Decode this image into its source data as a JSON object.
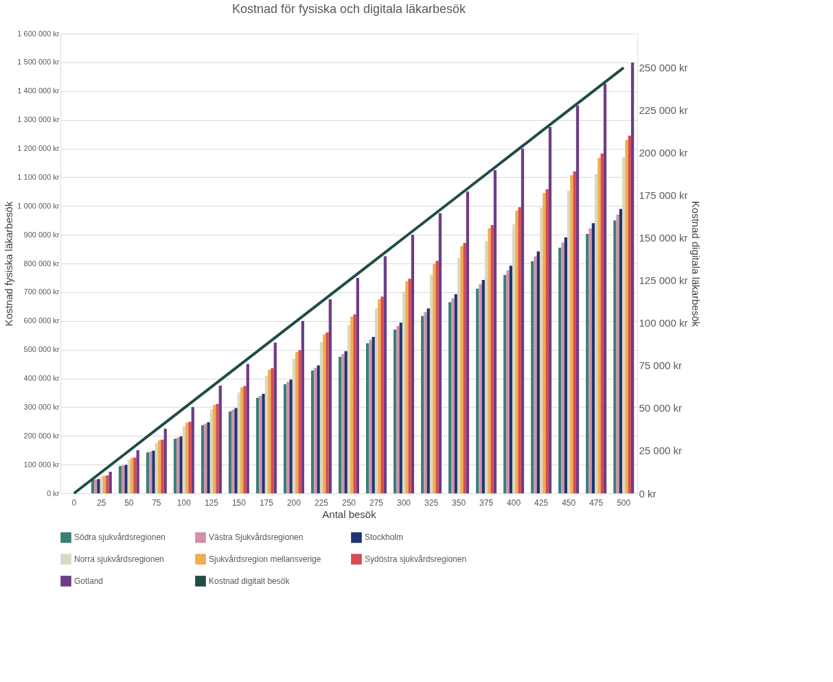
{
  "chart_data": {
    "type": "bar",
    "title": "Kostnad för fysiska och digitala läkarbesök",
    "xlabel": "Antal besök",
    "ylabel": "Kostnad fysiska läkarbesök",
    "y2label": "Kostnad digitala läkarbesök",
    "categories": [
      "0",
      "25",
      "50",
      "75",
      "100",
      "125",
      "150",
      "175",
      "200",
      "225",
      "250",
      "275",
      "300",
      "325",
      "350",
      "375",
      "400",
      "425",
      "450",
      "475",
      "500"
    ],
    "series": [
      {
        "name": "Södra sjukvårdsregionen",
        "color": "#3a8077",
        "values": [
          0,
          47500,
          95000,
          142500,
          190000,
          237500,
          285000,
          332500,
          380000,
          427500,
          475000,
          522500,
          570000,
          617500,
          665000,
          712500,
          760000,
          807500,
          855000,
          902500,
          950000
        ]
      },
      {
        "name": "Västra Sjukvårdsregionen",
        "color": "#d291a8",
        "values": [
          0,
          48500,
          97000,
          145500,
          194000,
          242500,
          291000,
          339500,
          388000,
          436500,
          485000,
          533500,
          582000,
          630500,
          679000,
          727500,
          776000,
          824500,
          873000,
          921500,
          970000
        ]
      },
      {
        "name": "Stockholm",
        "color": "#1f3473",
        "values": [
          0,
          49500,
          99000,
          148500,
          198000,
          247500,
          297000,
          346500,
          396000,
          445500,
          495000,
          544500,
          594000,
          643500,
          693000,
          742500,
          792000,
          841500,
          891000,
          940500,
          990000
        ]
      },
      {
        "name": "Norra sjukvårdsregionen",
        "color": "#ddd8c0",
        "values": [
          0,
          58500,
          117000,
          175500,
          234000,
          292500,
          351000,
          409500,
          468000,
          526500,
          585000,
          643500,
          702000,
          760500,
          819000,
          877500,
          936000,
          994500,
          1053000,
          1111500,
          1170000
        ]
      },
      {
        "name": "Sjukvårdsregion mellansverige",
        "color": "#efae4f",
        "values": [
          0,
          61500,
          123000,
          184500,
          246000,
          307500,
          369000,
          430500,
          492000,
          553500,
          615000,
          676500,
          738000,
          799500,
          861000,
          922500,
          984000,
          1045500,
          1107000,
          1168500,
          1230000
        ]
      },
      {
        "name": "Sydöstra sjukvårdsregionen",
        "color": "#d84a4e",
        "values": [
          0,
          62250,
          124500,
          186750,
          249000,
          311250,
          373500,
          435750,
          498000,
          560250,
          622500,
          684750,
          747000,
          809250,
          871500,
          933750,
          996000,
          1058250,
          1120500,
          1182750,
          1245000
        ]
      },
      {
        "name": "Gotland",
        "color": "#6e3d85",
        "values": [
          0,
          75000,
          150000,
          225000,
          300000,
          375000,
          450000,
          525000,
          600000,
          675000,
          750000,
          825000,
          900000,
          975000,
          1050000,
          1125000,
          1200000,
          1275000,
          1350000,
          1425000,
          1500000
        ]
      },
      {
        "name": "Kostnad digitalt besök",
        "color": "#1e4d44",
        "type": "line",
        "axis": "y2",
        "values": [
          0,
          12500,
          25000,
          37500,
          50000,
          62500,
          75000,
          87500,
          100000,
          112500,
          125000,
          137500,
          150000,
          162500,
          175000,
          187500,
          200000,
          212500,
          225000,
          237500,
          250000
        ]
      }
    ],
    "ylim": [
      0,
      1600000
    ],
    "yticks": [
      {
        "value": 0,
        "label": "0 kr"
      },
      {
        "value": 100000,
        "label": "100 000 kr"
      },
      {
        "value": 200000,
        "label": "200 000 kr"
      },
      {
        "value": 300000,
        "label": "300 000 kr"
      },
      {
        "value": 400000,
        "label": "400 000 kr"
      },
      {
        "value": 500000,
        "label": "500 000 kr"
      },
      {
        "value": 600000,
        "label": "600 000 kr"
      },
      {
        "value": 700000,
        "label": "700 000 kr"
      },
      {
        "value": 800000,
        "label": "800 000 kr"
      },
      {
        "value": 900000,
        "label": "900 000 kr"
      },
      {
        "value": 1000000,
        "label": "1 000 000 kr"
      },
      {
        "value": 1100000,
        "label": "1 100 000 kr"
      },
      {
        "value": 1200000,
        "label": "1 200 000 kr"
      },
      {
        "value": 1300000,
        "label": "1 300 000 kr"
      },
      {
        "value": 1400000,
        "label": "1 400 000 kr"
      },
      {
        "value": 1500000,
        "label": "1 500 000 kr"
      },
      {
        "value": 1600000,
        "label": "1 600 000 kr"
      }
    ],
    "y2lim": [
      0,
      270000
    ],
    "y2ticks": [
      {
        "value": 0,
        "label": "0 kr"
      },
      {
        "value": 25000,
        "label": "25 000 kr"
      },
      {
        "value": 50000,
        "label": "50 000 kr"
      },
      {
        "value": 75000,
        "label": "75 000 kr"
      },
      {
        "value": 100000,
        "label": "100 000 kr"
      },
      {
        "value": 125000,
        "label": "125 000 kr"
      },
      {
        "value": 150000,
        "label": "150 000 kr"
      },
      {
        "value": 175000,
        "label": "175 000 kr"
      },
      {
        "value": 200000,
        "label": "200 000 kr"
      },
      {
        "value": 225000,
        "label": "225 000 kr"
      },
      {
        "value": 250000,
        "label": "250 000 kr"
      }
    ],
    "grid": "y",
    "legend": "bottom",
    "marker": "none",
    "line_style": "solid"
  }
}
